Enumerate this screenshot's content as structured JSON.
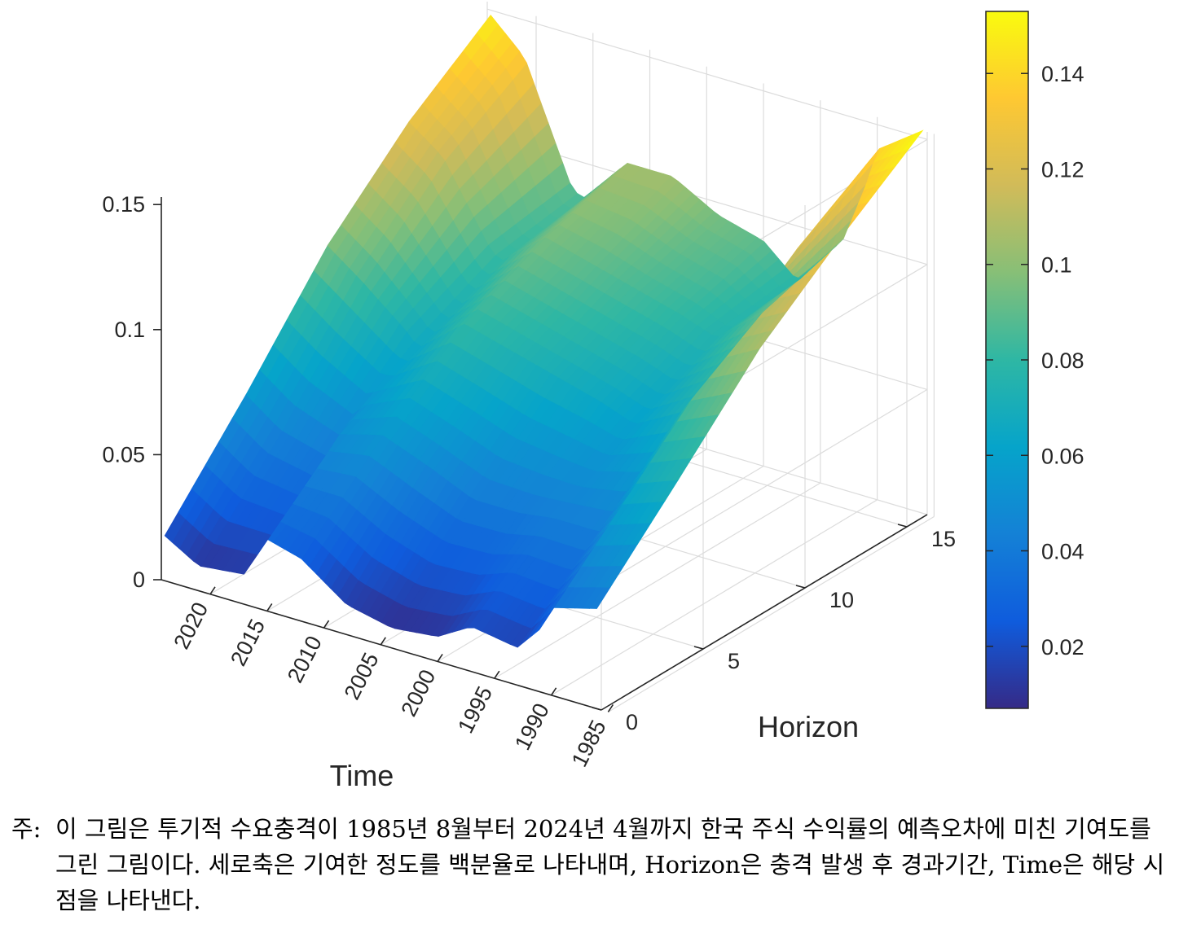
{
  "chart_data": {
    "type": "surface",
    "title": "",
    "xlabel": "Time",
    "ylabel": "Horizon",
    "zlabel": "",
    "time_ticks": [
      "2020",
      "2015",
      "2010",
      "2005",
      "2000",
      "1995",
      "1990",
      "1985"
    ],
    "time_tick_values": [
      2020,
      2015,
      2010,
      2005,
      2000,
      1995,
      1990,
      1985
    ],
    "time_range": [
      1985.6,
      2024.3
    ],
    "horizon_ticks": [
      "0",
      "5",
      "10",
      "15"
    ],
    "horizon_tick_values": [
      0,
      5,
      10,
      15
    ],
    "horizon_range": [
      0,
      16
    ],
    "z_ticks": [
      "0",
      "0.05",
      "0.1",
      "0.15"
    ],
    "z_tick_values": [
      0,
      0.05,
      0.1,
      0.15
    ],
    "z_range": [
      0,
      0.15
    ],
    "grid": true,
    "colorbar": {
      "ticks": [
        "0.02",
        "0.04",
        "0.06",
        "0.08",
        "0.1",
        "0.12",
        "0.14"
      ],
      "tick_values": [
        0.02,
        0.04,
        0.06,
        0.08,
        0.1,
        0.12,
        0.14
      ],
      "range": [
        0.007,
        0.153
      ],
      "colormap": "parula",
      "colors": [
        "#352a87",
        "#0f5cdd",
        "#1481d6",
        "#06a4ca",
        "#2eb7a4",
        "#87bf77",
        "#d1bb59",
        "#fec832",
        "#f9fb0e"
      ]
    },
    "approx_surface": {
      "description_source": "values estimated from colour and height",
      "horizon_samples": [
        0,
        4,
        8,
        12,
        16
      ],
      "time_samples": [
        2024,
        2021,
        2017,
        2016,
        2012,
        2008,
        2004,
        2000,
        1997,
        1993,
        1991,
        1990,
        1986
      ],
      "z": [
        [
          0.018,
          0.055,
          0.095,
          0.125,
          0.148
        ],
        [
          0.01,
          0.045,
          0.085,
          0.115,
          0.135
        ],
        [
          0.012,
          0.04,
          0.07,
          0.085,
          0.09
        ],
        [
          0.03,
          0.05,
          0.065,
          0.08,
          0.085
        ],
        [
          0.025,
          0.055,
          0.08,
          0.095,
          0.105
        ],
        [
          0.012,
          0.048,
          0.075,
          0.09,
          0.105
        ],
        [
          0.008,
          0.04,
          0.07,
          0.085,
          0.095
        ],
        [
          0.01,
          0.04,
          0.065,
          0.08,
          0.09
        ],
        [
          0.018,
          0.042,
          0.06,
          0.075,
          0.078
        ],
        [
          0.015,
          0.042,
          0.07,
          0.09,
          0.1
        ],
        [
          0.025,
          0.055,
          0.085,
          0.11,
          0.125
        ],
        [
          0.035,
          0.065,
          0.095,
          0.12,
          0.14
        ],
        [
          0.04,
          0.072,
          0.105,
          0.13,
          0.153
        ]
      ]
    }
  },
  "note": {
    "prefix": "주:",
    "text": "이 그림은 투기적 수요충격이 1985년 8월부터 2024년 4월까지 한국 주식 수익률의 예측오차에 미친 기여도를 그린 그림이다. 세로축은 기여한 정도를 백분율로 나타내며, Horizon은 충격 발생 후 경과기간, Time은 해당 시점을 나타낸다."
  }
}
